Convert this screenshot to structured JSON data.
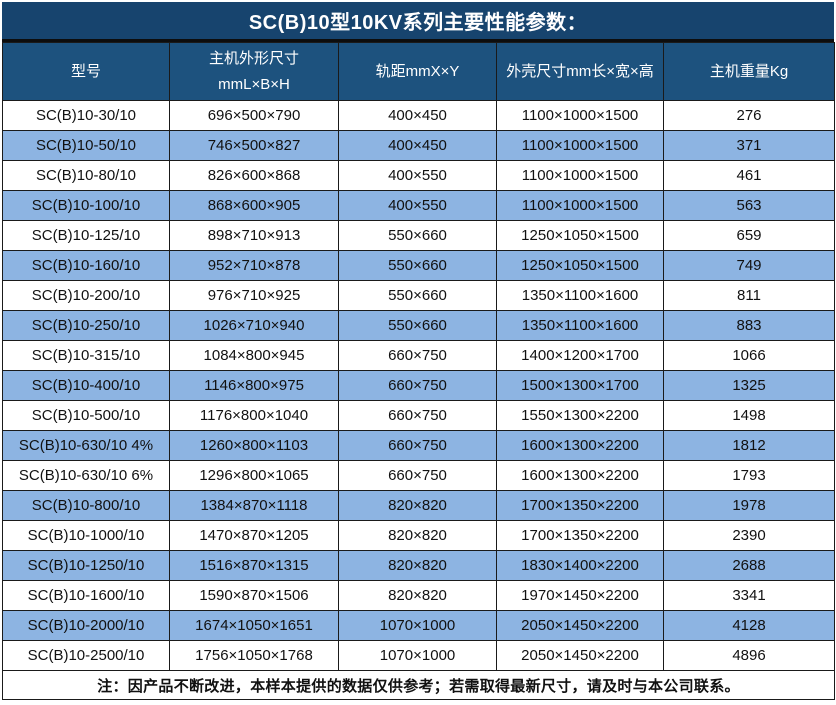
{
  "title": "SC(B)10型10KV系列主要性能参数：",
  "colors": {
    "title_bg": "#17446E",
    "header_bg": "#1D527E",
    "row_alt_bg": "#8DB4E2",
    "row_bg": "#FFFFFF",
    "border": "#1A1A1A",
    "header_text": "#FFFFFF",
    "cell_text": "#111111"
  },
  "table": {
    "columns": [
      {
        "label": "型号"
      },
      {
        "label": "主机外形尺寸\nmmL×B×H"
      },
      {
        "label": "轨距mmX×Y"
      },
      {
        "label": "外壳尺寸mm长×宽×高"
      },
      {
        "label": "主机重量Kg"
      }
    ],
    "rows": [
      [
        "SC(B)10-30/10",
        "696×500×790",
        "400×450",
        "1100×1000×1500",
        "276"
      ],
      [
        "SC(B)10-50/10",
        "746×500×827",
        "400×450",
        "1100×1000×1500",
        "371"
      ],
      [
        "SC(B)10-80/10",
        "826×600×868",
        "400×550",
        "1100×1000×1500",
        "461"
      ],
      [
        "SC(B)10-100/10",
        "868×600×905",
        "400×550",
        "1100×1000×1500",
        "563"
      ],
      [
        "SC(B)10-125/10",
        "898×710×913",
        "550×660",
        "1250×1050×1500",
        "659"
      ],
      [
        "SC(B)10-160/10",
        "952×710×878",
        "550×660",
        "1250×1050×1500",
        "749"
      ],
      [
        "SC(B)10-200/10",
        "976×710×925",
        "550×660",
        "1350×1100×1600",
        "811"
      ],
      [
        "SC(B)10-250/10",
        "1026×710×940",
        "550×660",
        "1350×1100×1600",
        "883"
      ],
      [
        "SC(B)10-315/10",
        "1084×800×945",
        "660×750",
        "1400×1200×1700",
        "1066"
      ],
      [
        "SC(B)10-400/10",
        "1146×800×975",
        "660×750",
        "1500×1300×1700",
        "1325"
      ],
      [
        "SC(B)10-500/10",
        "1176×800×1040",
        "660×750",
        "1550×1300×2200",
        "1498"
      ],
      [
        "SC(B)10-630/10 4%",
        "1260×800×1103",
        "660×750",
        "1600×1300×2200",
        "1812"
      ],
      [
        "SC(B)10-630/10 6%",
        "1296×800×1065",
        "660×750",
        "1600×1300×2200",
        "1793"
      ],
      [
        "SC(B)10-800/10",
        "1384×870×1118",
        "820×820",
        "1700×1350×2200",
        "1978"
      ],
      [
        "SC(B)10-1000/10",
        "1470×870×1205",
        "820×820",
        "1700×1350×2200",
        "2390"
      ],
      [
        "SC(B)10-1250/10",
        "1516×870×1315",
        "820×820",
        "1830×1400×2200",
        "2688"
      ],
      [
        "SC(B)10-1600/10",
        "1590×870×1506",
        "820×820",
        "1970×1450×2200",
        "3341"
      ],
      [
        "SC(B)10-2000/10",
        "1674×1050×1651",
        "1070×1000",
        "2050×1450×2200",
        "4128"
      ],
      [
        "SC(B)10-2500/10",
        "1756×1050×1768",
        "1070×1000",
        "2050×1450×2200",
        "4896"
      ]
    ]
  },
  "footer": {
    "note": "注：因产品不断改进，本样本提供的数据仅供参考；若需取得最新尺寸，请及时与本公司联系。"
  }
}
